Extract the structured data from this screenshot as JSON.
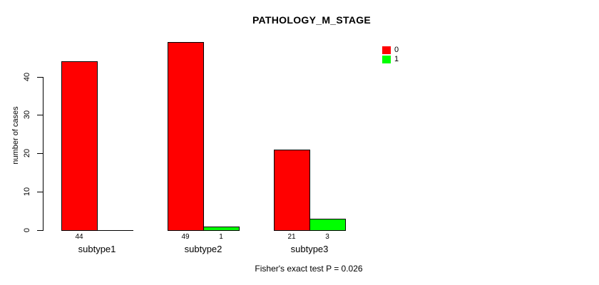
{
  "chart_data": {
    "type": "bar",
    "title": "PATHOLOGY_M_STAGE",
    "ylabel": "number of cases",
    "xlabel": "",
    "categories": [
      "subtype1",
      "subtype2",
      "subtype3"
    ],
    "series": [
      {
        "name": "0",
        "color": "#ff0000",
        "values": [
          44,
          49,
          21
        ]
      },
      {
        "name": "1",
        "color": "#00ff00",
        "values": [
          0,
          1,
          3
        ]
      }
    ],
    "value_labels": [
      [
        "44",
        ""
      ],
      [
        "49",
        "1"
      ],
      [
        "21",
        "3"
      ]
    ],
    "yticks": [
      0,
      10,
      20,
      30,
      40
    ],
    "ylim": [
      0,
      51
    ],
    "grid": false,
    "legend": {
      "position": "top-right",
      "entries": [
        {
          "label": "0",
          "color": "#ff0000"
        },
        {
          "label": "1",
          "color": "#00ff00"
        }
      ]
    },
    "annotation": "Fisher's exact test P = 0.026"
  },
  "colors": {
    "background": "#ffffff",
    "axis": "#000000",
    "bar_border": "#000000",
    "text": "#000000"
  }
}
